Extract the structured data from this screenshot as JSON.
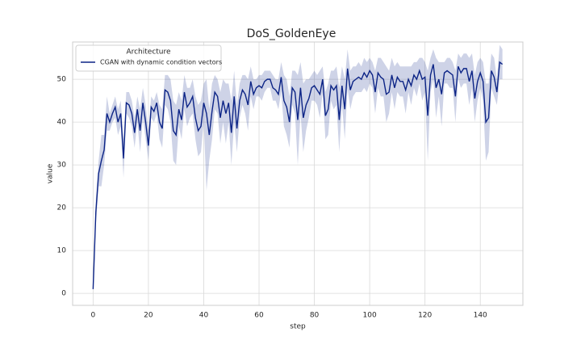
{
  "chart_data": {
    "type": "line",
    "title": "DoS_GoldenEye",
    "x_label": "step",
    "y_label": "value",
    "legend_title": "Architecture",
    "legend_position": "upper left",
    "grid": true,
    "xlim": [
      -7.4,
      155.4
    ],
    "ylim": [
      -2.8,
      58.7
    ],
    "xticks": [
      0,
      20,
      40,
      60,
      80,
      100,
      120,
      140
    ],
    "yticks": [
      0,
      10,
      20,
      30,
      40,
      50
    ],
    "x": [
      0,
      1,
      2,
      3,
      4,
      5,
      6,
      7,
      8,
      9,
      10,
      11,
      12,
      13,
      14,
      15,
      16,
      17,
      18,
      19,
      20,
      21,
      22,
      23,
      24,
      25,
      26,
      27,
      28,
      29,
      30,
      31,
      32,
      33,
      34,
      35,
      36,
      37,
      38,
      39,
      40,
      41,
      42,
      43,
      44,
      45,
      46,
      47,
      48,
      49,
      50,
      51,
      52,
      53,
      54,
      55,
      56,
      57,
      58,
      59,
      60,
      61,
      62,
      63,
      64,
      65,
      66,
      67,
      68,
      69,
      70,
      71,
      72,
      73,
      74,
      75,
      76,
      77,
      78,
      79,
      80,
      81,
      82,
      83,
      84,
      85,
      86,
      87,
      88,
      89,
      90,
      91,
      92,
      93,
      94,
      95,
      96,
      97,
      98,
      99,
      100,
      101,
      102,
      103,
      104,
      105,
      106,
      107,
      108,
      109,
      110,
      111,
      112,
      113,
      114,
      115,
      116,
      117,
      118,
      119,
      120,
      121,
      122,
      123,
      124,
      125,
      126,
      127,
      128,
      129,
      130,
      131,
      132,
      133,
      134,
      135,
      136,
      137,
      138,
      139,
      140,
      141,
      142,
      143,
      144,
      145,
      146,
      147,
      148
    ],
    "series": [
      {
        "name": "CGAN with dynamic condition vectors",
        "color": "#0c2486",
        "values": [
          1,
          19,
          28,
          31,
          33.5,
          42,
          40,
          42,
          43.5,
          40,
          42,
          31.5,
          44.5,
          44,
          42,
          37.5,
          43,
          38,
          44.5,
          40,
          34.5,
          43.5,
          42.5,
          44.5,
          40,
          38.5,
          47.5,
          47,
          45,
          38,
          37,
          43,
          40.5,
          47,
          43.5,
          44.5,
          46,
          41,
          38,
          39,
          44.5,
          42,
          37,
          42.5,
          47,
          46,
          41,
          45,
          42,
          44.5,
          37.5,
          46,
          38.5,
          45,
          47.5,
          46.5,
          44,
          49.5,
          46.5,
          48,
          48.5,
          48,
          49.5,
          50,
          50,
          48,
          47.5,
          46.5,
          50.5,
          45,
          43.5,
          40,
          48,
          47,
          40.5,
          48,
          41,
          44,
          45.5,
          48,
          48.5,
          47.5,
          46.5,
          50,
          41.5,
          43,
          48.5,
          47.5,
          48.5,
          40.5,
          48.5,
          43,
          52.5,
          47.5,
          49.5,
          50,
          50.5,
          50,
          51.5,
          50.5,
          52,
          51,
          47,
          51.5,
          50.5,
          50,
          46.5,
          47,
          51,
          48,
          50.5,
          49.5,
          49.5,
          47.5,
          50,
          48.5,
          51,
          50,
          52,
          50,
          50.5,
          41.5,
          51,
          53.5,
          48,
          50,
          46.5,
          51.5,
          52,
          51.5,
          51,
          46,
          53,
          51.5,
          52.5,
          52.5,
          49.5,
          52,
          45.5,
          49.5,
          51.5,
          49.5,
          40,
          41,
          52,
          50.5,
          47,
          54,
          53.5
        ],
        "ci_lower": [
          0.5,
          16,
          25,
          25,
          30,
          38,
          38,
          40,
          41,
          37,
          39,
          27,
          42,
          41,
          39,
          34,
          40,
          33,
          41,
          36,
          31,
          41,
          40,
          42,
          36,
          34,
          44,
          43,
          40,
          31,
          30,
          39,
          36,
          43,
          39,
          41,
          42,
          36,
          32,
          33,
          40,
          24,
          31,
          36,
          43,
          42,
          35,
          40,
          35,
          40,
          30,
          40,
          33,
          41,
          44,
          42,
          38,
          46,
          43,
          46,
          46,
          45,
          47,
          48,
          48,
          45,
          45,
          43,
          47,
          39,
          37,
          34,
          44,
          42,
          30,
          42,
          33,
          38,
          41,
          45,
          45,
          44,
          41,
          47,
          36,
          37,
          45,
          43,
          44,
          33,
          44,
          36,
          48,
          43,
          46,
          47,
          47,
          47,
          48,
          47,
          49,
          48,
          42,
          48,
          46,
          46,
          40,
          42,
          47,
          43,
          47,
          46,
          46,
          42,
          47,
          44,
          48,
          46,
          49,
          45,
          47,
          31,
          47,
          50,
          41,
          46,
          39,
          49,
          49,
          48,
          48,
          40,
          50,
          48,
          49,
          49,
          44,
          48,
          40,
          45,
          48,
          45,
          31,
          33,
          48,
          46,
          44,
          50,
          50
        ],
        "ci_upper": [
          1.5,
          22,
          31,
          37,
          37,
          46,
          42,
          44,
          46,
          43,
          45,
          36,
          47,
          47,
          45,
          41,
          46,
          43,
          48,
          44,
          38,
          46,
          45,
          47,
          44,
          43,
          51,
          51,
          50,
          45,
          44,
          47,
          45,
          51,
          48,
          48,
          50,
          46,
          44,
          45,
          49,
          50,
          43,
          49,
          51,
          50,
          47,
          50,
          49,
          49,
          45,
          52,
          44,
          49,
          51,
          51,
          50,
          53,
          50,
          50,
          51,
          51,
          52,
          52,
          52,
          51,
          50,
          50,
          54,
          51,
          50,
          46,
          52,
          52,
          51,
          54,
          49,
          50,
          50,
          51,
          52,
          51,
          52,
          53,
          47,
          49,
          52,
          52,
          53,
          48,
          53,
          50,
          57,
          52,
          53,
          53,
          54,
          53,
          55,
          54,
          55,
          54,
          52,
          55,
          55,
          54,
          53,
          52,
          55,
          53,
          54,
          53,
          53,
          53,
          53,
          53,
          54,
          54,
          55,
          55,
          54,
          52,
          55,
          57,
          55,
          54,
          54,
          54,
          55,
          55,
          54,
          52,
          56,
          55,
          56,
          56,
          55,
          56,
          51,
          54,
          55,
          54,
          49,
          49,
          56,
          55,
          50,
          58,
          57
        ]
      }
    ]
  }
}
